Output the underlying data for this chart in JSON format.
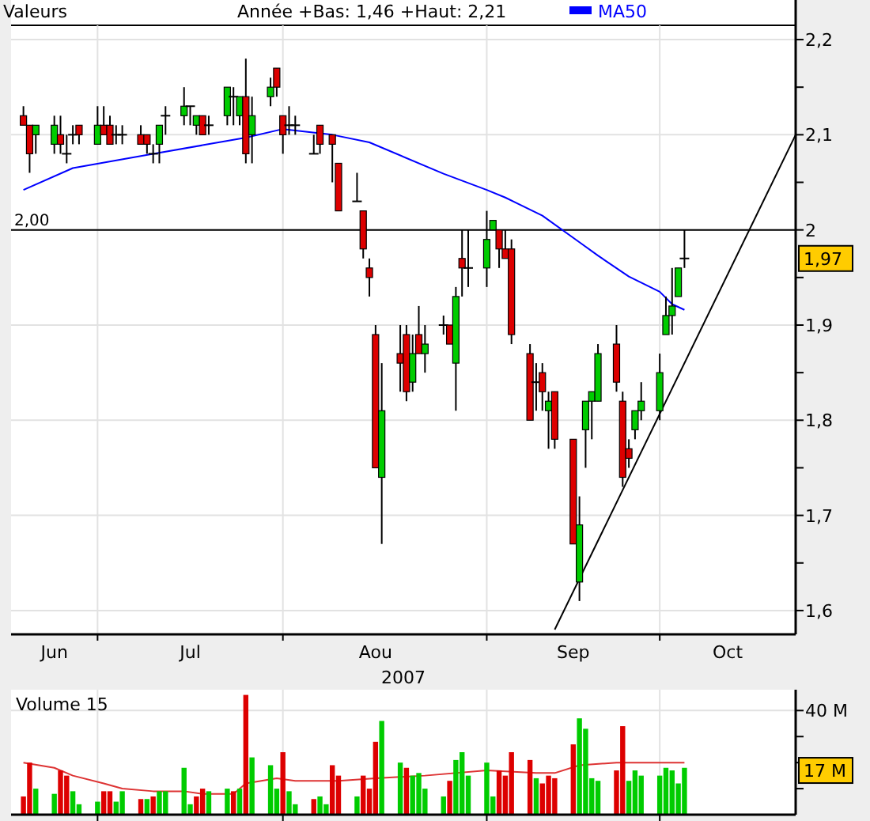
{
  "chart_data": [
    {
      "type": "candlestick",
      "legend_title": "Valeurs",
      "legend": "top",
      "xlabel": "2007",
      "grid": true,
      "annotations": [
        "Année +Bas: 1,46 +Haut: 2,21",
        {
          "text": "1,97",
          "y": 1.97
        }
      ],
      "xlim": [
        "2007-06-18",
        "2007-10-23"
      ],
      "xticks": [
        {
          "value": "2007-07-02",
          "label": null
        },
        {
          "value": "2007-08-01",
          "label": null
        },
        {
          "value": "2007-09-03",
          "label": null
        },
        {
          "value": "2007-10-01",
          "label": null
        },
        {
          "value": "2007-06-25",
          "label": "Jun"
        },
        {
          "value": "2007-07-17",
          "label": "Jul"
        },
        {
          "value": "2007-08-16",
          "label": "Aou"
        },
        {
          "value": "2007-09-17",
          "label": "Sep"
        },
        {
          "value": "2007-10-12",
          "label": "Oct"
        }
      ],
      "ylim": [
        1.575,
        2.215
      ],
      "yticks": [
        {
          "value": 1.6,
          "label": "1,6"
        },
        {
          "value": 1.65,
          "label": null
        },
        {
          "value": 1.7,
          "label": "1,7"
        },
        {
          "value": 1.75,
          "label": null
        },
        {
          "value": 1.8,
          "label": "1,8"
        },
        {
          "value": 1.85,
          "label": null
        },
        {
          "value": 1.9,
          "label": "1,9"
        },
        {
          "value": 1.95,
          "label": null
        },
        {
          "value": 2,
          "label": "2"
        },
        {
          "value": 2.05,
          "label": null
        },
        {
          "value": 2.1,
          "label": "2,1"
        },
        {
          "value": 2.15,
          "label": null
        },
        {
          "value": 2.2,
          "label": "2,2"
        }
      ],
      "ref_lines": [
        {
          "axis": "y",
          "value": 2,
          "label": "2,00",
          "color": "#000000"
        }
      ],
      "x": [
        "2007-06-20",
        "2007-06-21",
        "2007-06-22",
        "2007-06-25",
        "2007-06-26",
        "2007-06-27",
        "2007-06-28",
        "2007-06-29",
        "2007-07-02",
        "2007-07-03",
        "2007-07-04",
        "2007-07-05",
        "2007-07-06",
        "2007-07-09",
        "2007-07-10",
        "2007-07-11",
        "2007-07-12",
        "2007-07-13",
        "2007-07-16",
        "2007-07-17",
        "2007-07-18",
        "2007-07-19",
        "2007-07-20",
        "2007-07-23",
        "2007-07-24",
        "2007-07-25",
        "2007-07-26",
        "2007-07-27",
        "2007-07-30",
        "2007-07-31",
        "2007-08-01",
        "2007-08-02",
        "2007-08-03",
        "2007-08-06",
        "2007-08-07",
        "2007-08-09",
        "2007-08-10",
        "2007-08-13",
        "2007-08-14",
        "2007-08-15",
        "2007-08-16",
        "2007-08-17",
        "2007-08-20",
        "2007-08-21",
        "2007-08-22",
        "2007-08-23",
        "2007-08-24",
        "2007-08-27",
        "2007-08-28",
        "2007-08-29",
        "2007-08-30",
        "2007-08-31",
        "2007-09-03",
        "2007-09-04",
        "2007-09-05",
        "2007-09-06",
        "2007-09-07",
        "2007-09-10",
        "2007-09-11",
        "2007-09-12",
        "2007-09-13",
        "2007-09-14",
        "2007-09-17",
        "2007-09-18",
        "2007-09-19",
        "2007-09-20",
        "2007-09-21",
        "2007-09-24",
        "2007-09-25",
        "2007-09-26",
        "2007-09-27",
        "2007-09-28",
        "2007-10-01",
        "2007-10-02",
        "2007-10-03",
        "2007-10-04",
        "2007-10-05"
      ],
      "ohlc": [
        [
          2.12,
          2.13,
          2.11,
          2.11
        ],
        [
          2.11,
          2.11,
          2.06,
          2.08
        ],
        [
          2.1,
          2.11,
          2.08,
          2.11
        ],
        [
          2.09,
          2.12,
          2.08,
          2.11
        ],
        [
          2.1,
          2.12,
          2.08,
          2.09
        ],
        [
          2.08,
          2.1,
          2.07,
          2.08
        ],
        [
          2.1,
          2.11,
          2.09,
          2.1
        ],
        [
          2.11,
          2.11,
          2.09,
          2.1
        ],
        [
          2.09,
          2.13,
          2.09,
          2.11
        ],
        [
          2.11,
          2.13,
          2.1,
          2.1
        ],
        [
          2.11,
          2.12,
          2.09,
          2.09
        ],
        [
          2.1,
          2.11,
          2.09,
          2.1
        ],
        [
          2.1,
          2.11,
          2.09,
          2.1
        ],
        [
          2.1,
          2.11,
          2.09,
          2.09
        ],
        [
          2.1,
          2.1,
          2.08,
          2.09
        ],
        [
          2.08,
          2.09,
          2.07,
          2.08
        ],
        [
          2.09,
          2.11,
          2.07,
          2.11
        ],
        [
          2.12,
          2.13,
          2.1,
          2.12
        ],
        [
          2.12,
          2.15,
          2.11,
          2.13
        ],
        [
          2.13,
          2.13,
          2.11,
          2.13
        ],
        [
          2.11,
          2.12,
          2.1,
          2.12
        ],
        [
          2.12,
          2.12,
          2.1,
          2.1
        ],
        [
          2.11,
          2.12,
          2.1,
          2.11
        ],
        [
          2.12,
          2.15,
          2.11,
          2.15
        ],
        [
          2.14,
          2.15,
          2.11,
          2.14
        ],
        [
          2.12,
          2.14,
          2.11,
          2.14
        ],
        [
          2.14,
          2.18,
          2.07,
          2.08
        ],
        [
          2.1,
          2.14,
          2.07,
          2.12
        ],
        [
          2.14,
          2.16,
          2.13,
          2.15
        ],
        [
          2.17,
          2.17,
          2.14,
          2.15
        ],
        [
          2.12,
          2.12,
          2.08,
          2.1
        ],
        [
          2.11,
          2.13,
          2.1,
          2.11
        ],
        [
          2.11,
          2.12,
          2.1,
          2.11
        ],
        [
          2.08,
          2.1,
          2.08,
          2.08
        ],
        [
          2.11,
          2.11,
          2.08,
          2.09
        ],
        [
          2.1,
          2.1,
          2.05,
          2.09
        ],
        [
          2.07,
          2.07,
          2.02,
          2.02
        ],
        [
          2.03,
          2.06,
          2.03,
          2.03
        ],
        [
          2.02,
          2.02,
          1.97,
          1.98
        ],
        [
          1.96,
          1.97,
          1.93,
          1.95
        ],
        [
          1.89,
          1.9,
          1.75,
          1.75
        ],
        [
          1.74,
          1.86,
          1.67,
          1.81
        ],
        [
          1.87,
          1.9,
          1.83,
          1.86
        ],
        [
          1.89,
          1.9,
          1.82,
          1.83
        ],
        [
          1.84,
          1.89,
          1.83,
          1.87
        ],
        [
          1.89,
          1.92,
          1.87,
          1.87
        ],
        [
          1.87,
          1.9,
          1.85,
          1.88
        ],
        [
          1.9,
          1.91,
          1.89,
          1.9
        ],
        [
          1.9,
          1.9,
          1.88,
          1.88
        ],
        [
          1.86,
          1.94,
          1.81,
          1.93
        ],
        [
          1.97,
          2.0,
          1.93,
          1.96
        ],
        [
          1.96,
          2.0,
          1.94,
          1.96
        ],
        [
          1.96,
          2.02,
          1.94,
          1.99
        ],
        [
          2.0,
          2.01,
          2.0,
          2.01
        ],
        [
          2.0,
          2.0,
          1.96,
          1.98
        ],
        [
          1.98,
          2.0,
          1.97,
          1.97
        ],
        [
          1.98,
          1.99,
          1.88,
          1.89
        ],
        [
          1.87,
          1.88,
          1.8,
          1.8
        ],
        [
          1.84,
          1.86,
          1.81,
          1.84
        ],
        [
          1.85,
          1.86,
          1.81,
          1.83
        ],
        [
          1.81,
          1.83,
          1.77,
          1.82
        ],
        [
          1.83,
          1.83,
          1.77,
          1.78
        ],
        [
          1.78,
          1.78,
          1.67,
          1.67
        ],
        [
          1.63,
          1.72,
          1.61,
          1.69
        ],
        [
          1.79,
          1.82,
          1.75,
          1.82
        ],
        [
          1.82,
          1.83,
          1.78,
          1.83
        ],
        [
          1.82,
          1.88,
          1.82,
          1.87
        ],
        [
          1.88,
          1.9,
          1.83,
          1.84
        ],
        [
          1.82,
          1.83,
          1.73,
          1.74
        ],
        [
          1.77,
          1.78,
          1.75,
          1.76
        ],
        [
          1.79,
          1.81,
          1.78,
          1.81
        ],
        [
          1.81,
          1.84,
          1.8,
          1.82
        ],
        [
          1.81,
          1.87,
          1.8,
          1.85
        ],
        [
          1.89,
          1.93,
          1.89,
          1.91
        ],
        [
          1.91,
          1.96,
          1.89,
          1.92
        ],
        [
          1.93,
          1.96,
          1.93,
          1.96
        ],
        [
          1.97,
          2.0,
          1.96,
          1.97
        ]
      ],
      "series": [
        {
          "type": "line",
          "name": "MA50",
          "color": "#0000ff",
          "x": [
            "2007-06-20",
            "2007-06-28",
            "2007-07-11",
            "2007-07-19",
            "2007-07-26",
            "2007-08-01",
            "2007-08-09",
            "2007-08-15",
            "2007-08-27",
            "2007-09-03",
            "2007-09-06",
            "2007-09-12",
            "2007-09-18",
            "2007-09-21",
            "2007-09-26",
            "2007-10-01",
            "2007-10-03",
            "2007-10-05"
          ],
          "values": [
            2.042,
            2.065,
            2.08,
            2.089,
            2.097,
            2.106,
            2.1,
            2.092,
            2.059,
            2.042,
            2.034,
            2.015,
            1.987,
            1.973,
            1.951,
            1.935,
            1.922,
            1.916
          ]
        },
        {
          "type": "line",
          "color": "#000000",
          "x": [
            "2007-09-14",
            "2007-10-23"
          ],
          "values": [
            1.58,
            2.1
          ]
        }
      ]
    },
    {
      "type": "bar",
      "title": "Volume 15",
      "tick_labels": "y",
      "grid": true,
      "annotations": [
        {
          "text": "17 M",
          "y": 17
        }
      ],
      "xlim": [
        "2007-06-18",
        "2007-10-23"
      ],
      "xticks": [
        {
          "value": "2007-07-02",
          "label": null
        },
        {
          "value": "2007-08-01",
          "label": null
        },
        {
          "value": "2007-09-03",
          "label": null
        },
        {
          "value": "2007-10-01",
          "label": null
        }
      ],
      "ylim": [
        0,
        48
      ],
      "yticks": [
        {
          "value": 10,
          "label": null
        },
        {
          "value": 20,
          "label": null
        },
        {
          "value": 30,
          "label": null
        },
        {
          "value": 40,
          "label": "40 M"
        }
      ],
      "x": [
        "2007-06-20",
        "2007-06-21",
        "2007-06-22",
        "2007-06-25",
        "2007-06-26",
        "2007-06-27",
        "2007-06-28",
        "2007-06-29",
        "2007-07-02",
        "2007-07-03",
        "2007-07-04",
        "2007-07-05",
        "2007-07-06",
        "2007-07-09",
        "2007-07-10",
        "2007-07-11",
        "2007-07-12",
        "2007-07-13",
        "2007-07-16",
        "2007-07-17",
        "2007-07-18",
        "2007-07-19",
        "2007-07-20",
        "2007-07-23",
        "2007-07-24",
        "2007-07-25",
        "2007-07-26",
        "2007-07-27",
        "2007-07-30",
        "2007-07-31",
        "2007-08-01",
        "2007-08-02",
        "2007-08-03",
        "2007-08-06",
        "2007-08-07",
        "2007-08-08",
        "2007-08-09",
        "2007-08-10",
        "2007-08-13",
        "2007-08-14",
        "2007-08-15",
        "2007-08-16",
        "2007-08-17",
        "2007-08-20",
        "2007-08-21",
        "2007-08-22",
        "2007-08-23",
        "2007-08-24",
        "2007-08-27",
        "2007-08-28",
        "2007-08-29",
        "2007-08-30",
        "2007-08-31",
        "2007-09-03",
        "2007-09-04",
        "2007-09-05",
        "2007-09-06",
        "2007-09-07",
        "2007-09-10",
        "2007-09-11",
        "2007-09-12",
        "2007-09-13",
        "2007-09-14",
        "2007-09-17",
        "2007-09-18",
        "2007-09-19",
        "2007-09-20",
        "2007-09-21",
        "2007-09-24",
        "2007-09-25",
        "2007-09-26",
        "2007-09-27",
        "2007-09-28",
        "2007-10-01",
        "2007-10-02",
        "2007-10-03",
        "2007-10-04",
        "2007-10-05"
      ],
      "series": [
        {
          "values": [
            7,
            20,
            10,
            8,
            17,
            15,
            9,
            4,
            5,
            9,
            9,
            5,
            9,
            6,
            6,
            7,
            9,
            9,
            18,
            4,
            7,
            10,
            9,
            10,
            9,
            10,
            46,
            22,
            19,
            10,
            24,
            9,
            4,
            6,
            7,
            4,
            19,
            15,
            7,
            15,
            10,
            28,
            36,
            20,
            18,
            15,
            16,
            10,
            7,
            13,
            21,
            24,
            15,
            20,
            7,
            17,
            15,
            24,
            21,
            14,
            12,
            15,
            14,
            27,
            37,
            33,
            14,
            13,
            17,
            34,
            13,
            17,
            15,
            15,
            18,
            17,
            12,
            18
          ],
          "colors": [
            "#dd0000",
            "#dd0000",
            "#00cc00",
            "#00cc00",
            "#dd0000",
            "#dd0000",
            "#00cc00",
            "#00cc00",
            "#00cc00",
            "#dd0000",
            "#dd0000",
            "#00cc00",
            "#00cc00",
            "#dd0000",
            "#00cc00",
            "#dd0000",
            "#00cc00",
            "#00cc00",
            "#00cc00",
            "#00cc00",
            "#dd0000",
            "#dd0000",
            "#00cc00",
            "#00cc00",
            "#dd0000",
            "#00cc00",
            "#dd0000",
            "#00cc00",
            "#00cc00",
            "#00cc00",
            "#dd0000",
            "#00cc00",
            "#00cc00",
            "#dd0000",
            "#00cc00",
            "#00cc00",
            "#dd0000",
            "#dd0000",
            "#00cc00",
            "#dd0000",
            "#dd0000",
            "#dd0000",
            "#00cc00",
            "#00cc00",
            "#dd0000",
            "#00cc00",
            "#00cc00",
            "#00cc00",
            "#00cc00",
            "#dd0000",
            "#00cc00",
            "#00cc00",
            "#00cc00",
            "#00cc00",
            "#00cc00",
            "#dd0000",
            "#dd0000",
            "#dd0000",
            "#dd0000",
            "#00cc00",
            "#dd0000",
            "#dd0000",
            "#dd0000",
            "#dd0000",
            "#00cc00",
            "#00cc00",
            "#00cc00",
            "#00cc00",
            "#dd0000",
            "#dd0000",
            "#00cc00",
            "#00cc00",
            "#00cc00",
            "#00cc00",
            "#00cc00",
            "#00cc00",
            "#00cc00",
            "#00cc00"
          ]
        },
        {
          "type": "line",
          "color": "#dd3333",
          "x": [
            "2007-06-20",
            "2007-06-25",
            "2007-06-28",
            "2007-07-03",
            "2007-07-06",
            "2007-07-11",
            "2007-07-16",
            "2007-07-19",
            "2007-07-24",
            "2007-07-26",
            "2007-07-31",
            "2007-08-03",
            "2007-08-10",
            "2007-08-16",
            "2007-08-24",
            "2007-09-03",
            "2007-09-11",
            "2007-09-14",
            "2007-09-18",
            "2007-09-24",
            "2007-10-01",
            "2007-10-05"
          ],
          "values": [
            20,
            18,
            15,
            12,
            10,
            9,
            9,
            8,
            8,
            12,
            14,
            13,
            13,
            14,
            15,
            17,
            16,
            16,
            19,
            20,
            20,
            20
          ]
        }
      ]
    }
  ]
}
